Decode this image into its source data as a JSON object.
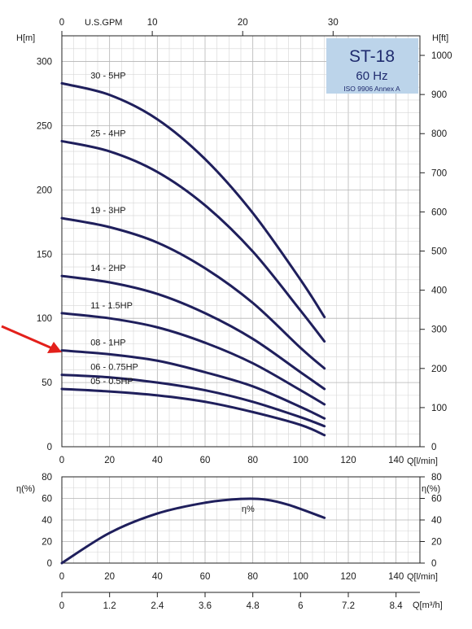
{
  "chart_data": [
    {
      "type": "line",
      "title_box": {
        "title": "ST-18",
        "subtitle": "60 Hz",
        "note": "ISO 9906 Annex A",
        "color": "#bcd4ea"
      },
      "ylabel_left": "H[m]",
      "ylabel_right": "H[ft]",
      "xlabel_top": "U.S.GPM",
      "xlabel_bottom": "Q[l/min]",
      "xlim": [
        0,
        150
      ],
      "ylim": [
        0,
        320
      ],
      "ylim_ft": [
        0,
        1050
      ],
      "xlim_gpm": [
        0,
        39.6
      ],
      "x_ticks": [
        0,
        20,
        40,
        60,
        80,
        100,
        120,
        140
      ],
      "y_ticks": [
        0,
        50,
        100,
        150,
        200,
        250,
        300
      ],
      "y_ticks_ft": [
        0,
        100,
        200,
        300,
        400,
        500,
        600,
        700,
        800,
        900,
        1000
      ],
      "x_ticks_gpm": [
        0,
        10,
        20,
        30
      ],
      "series": [
        {
          "name": "30 - 5HP",
          "x": [
            0,
            20,
            40,
            60,
            80,
            100,
            110
          ],
          "y": [
            283,
            274,
            255,
            224,
            182,
            130,
            101
          ]
        },
        {
          "name": "25 - 4HP",
          "x": [
            0,
            20,
            40,
            60,
            80,
            100,
            110
          ],
          "y": [
            238,
            230,
            214,
            188,
            152,
            106,
            82
          ]
        },
        {
          "name": "19 - 3HP",
          "x": [
            0,
            20,
            40,
            60,
            80,
            100,
            110
          ],
          "y": [
            178,
            171,
            159,
            139,
            112,
            77,
            61
          ]
        },
        {
          "name": "14 - 2HP",
          "x": [
            0,
            20,
            40,
            60,
            80,
            100,
            110
          ],
          "y": [
            133,
            128,
            119,
            104,
            84,
            58,
            45
          ]
        },
        {
          "name": "11 - 1.5HP",
          "x": [
            0,
            20,
            40,
            60,
            80,
            100,
            110
          ],
          "y": [
            104,
            100,
            93,
            81,
            65,
            44,
            33
          ]
        },
        {
          "name": "08 - 1HP",
          "x": [
            0,
            20,
            40,
            60,
            80,
            100,
            110
          ],
          "y": [
            75,
            72,
            67,
            58,
            47,
            31,
            22
          ]
        },
        {
          "name": "06 - 0.75HP",
          "x": [
            0,
            20,
            40,
            60,
            80,
            100,
            110
          ],
          "y": [
            56,
            54,
            50,
            44,
            35,
            23,
            16
          ]
        },
        {
          "name": "05 - 0.5HP",
          "x": [
            0,
            20,
            40,
            60,
            80,
            100,
            110
          ],
          "y": [
            45,
            43,
            40,
            35,
            27,
            17,
            9
          ]
        }
      ],
      "annotation": "red arrow pointing at 08 - 1HP curve"
    },
    {
      "type": "line",
      "ylabel_left": "η(%)",
      "ylabel_right": "η(%)",
      "xlabel_bottom": "Q[l/min]",
      "xlim": [
        0,
        150
      ],
      "ylim": [
        0,
        80
      ],
      "x_ticks": [
        0,
        20,
        40,
        60,
        80,
        100,
        120,
        140
      ],
      "y_ticks": [
        0,
        20,
        40,
        60,
        80
      ],
      "series": [
        {
          "name": "η%",
          "x": [
            0,
            20,
            40,
            60,
            75,
            85,
            95,
            110
          ],
          "y": [
            0,
            28,
            46,
            56,
            59.5,
            59,
            54,
            42
          ]
        }
      ]
    },
    {
      "type": "axis",
      "xlabel": "Q[m³/h]",
      "x_ticks": [
        "0",
        "1.2",
        "2.4",
        "3.6",
        "4.8",
        "6",
        "7.2",
        "8.4"
      ]
    }
  ],
  "arrow_color": "#e3201b",
  "curve_color": "#1f1f5c"
}
